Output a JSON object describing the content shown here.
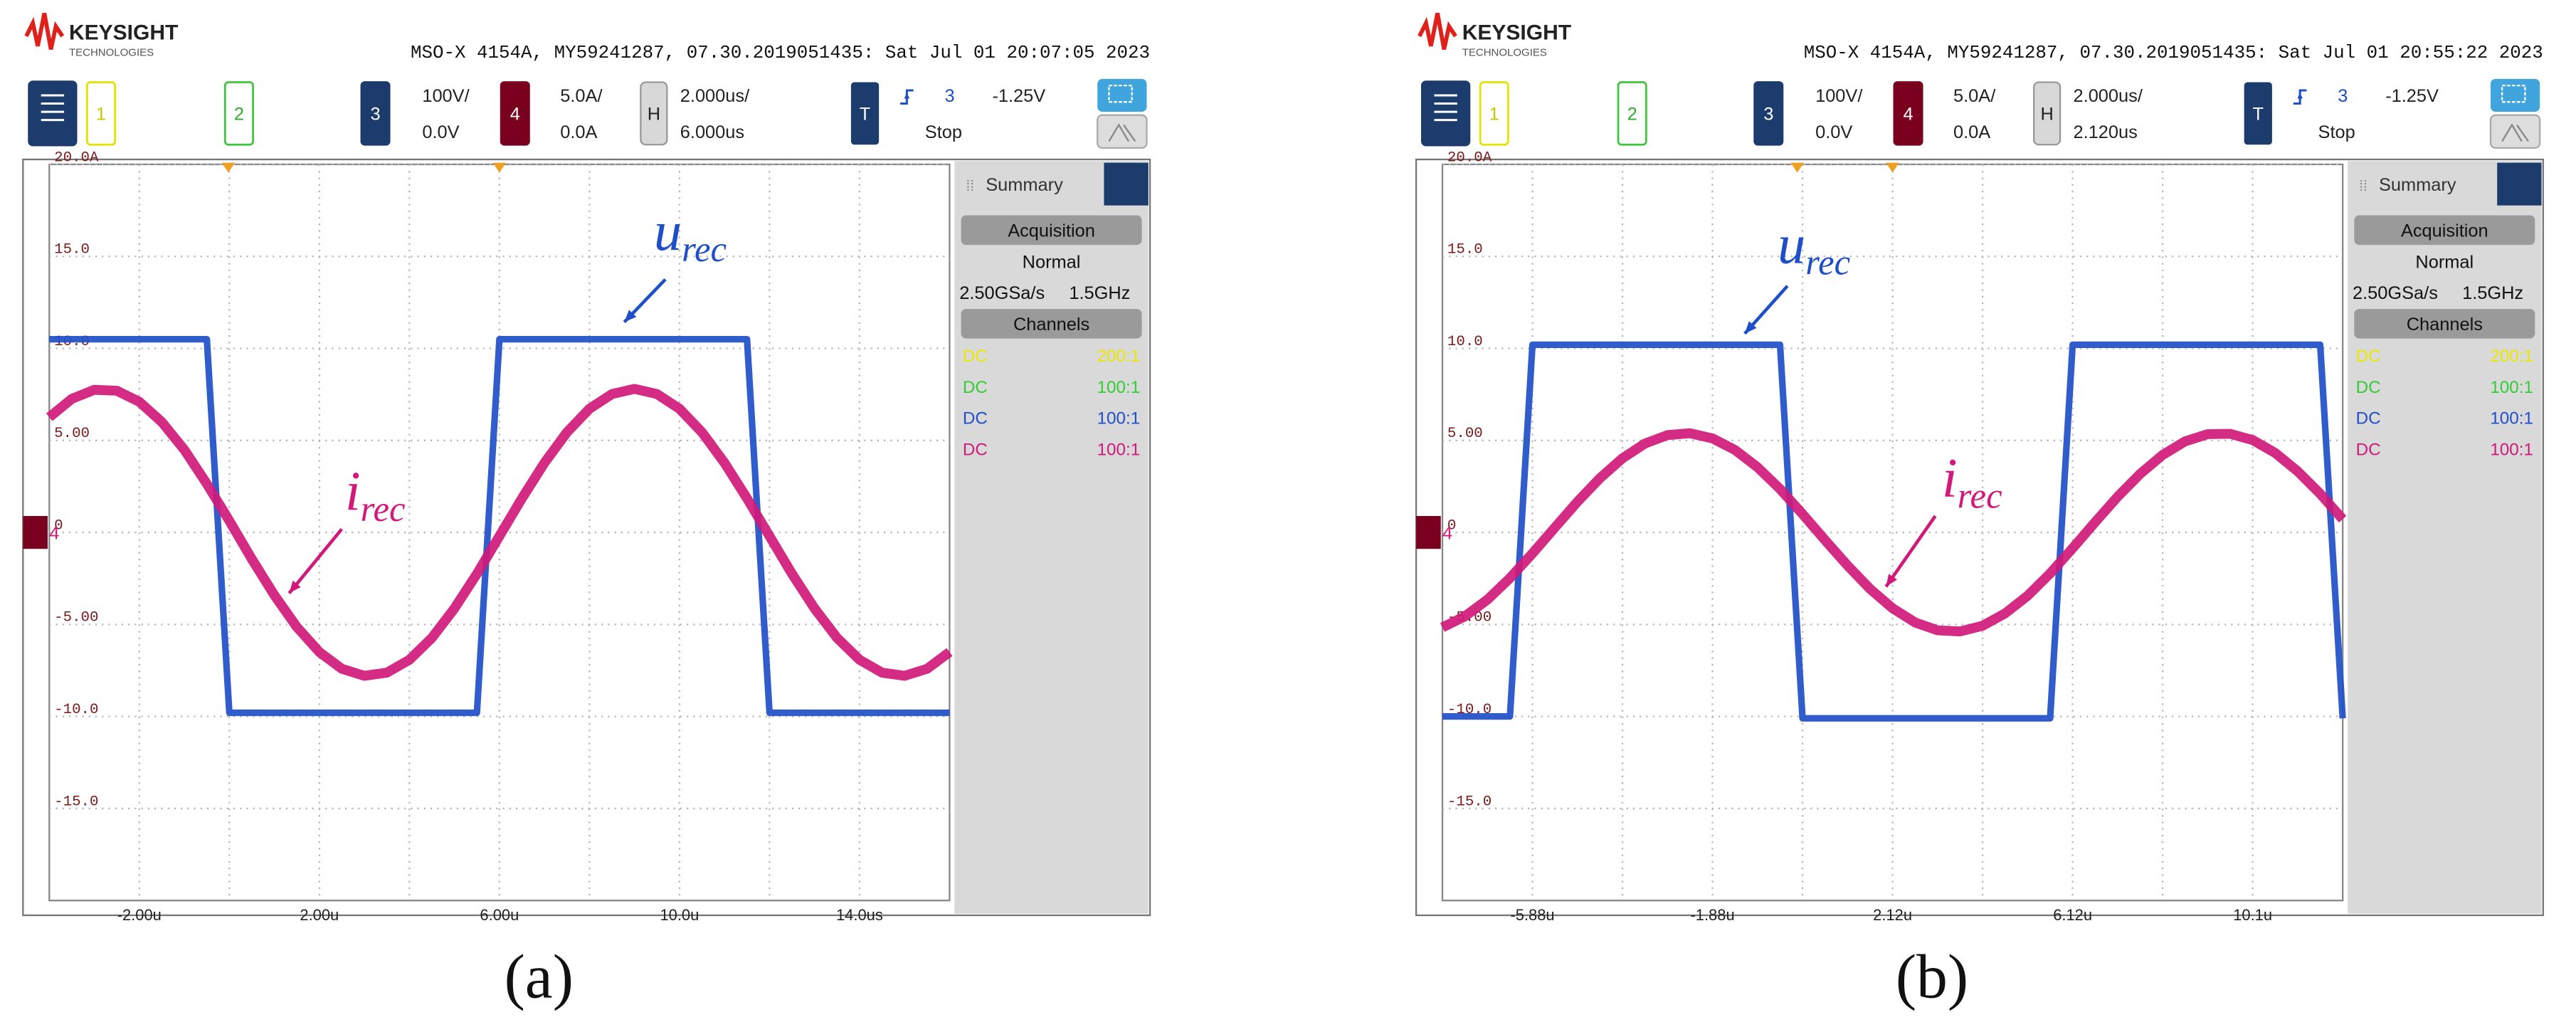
{
  "chart_data": [
    {
      "type": "line",
      "brand": "KEYSIGHT",
      "brand_sub": "TECHNOLOGIES",
      "title": "MSO-X 4154A, MY59241287, 07.30.2019051435: Sat Jul 01 20:07:05 2023",
      "channels": [
        "1",
        "2",
        "3",
        "4"
      ],
      "ch3_scale": "100V/",
      "ch3_offset": "0.0V",
      "ch4_scale": "5.0A/",
      "ch4_offset": "0.0A",
      "h_label": "H",
      "timebase": "2.000us/",
      "delay": "6.000us",
      "t_label": "T",
      "trigger_source": "3",
      "trigger_level": "-1.25V",
      "run_state": "Stop",
      "panel_title": "Summary",
      "acquisition": "Acquisition",
      "acq_mode": "Normal",
      "sample_rate": "2.50GSa/s",
      "bandwidth": "1.5GHz",
      "channels_title": "Channels",
      "channel_rows": [
        [
          "DC",
          "200:1"
        ],
        [
          "DC",
          "100:1"
        ],
        [
          "DC",
          "100:1"
        ],
        [
          "DC",
          "100:1"
        ]
      ],
      "ground_marker": "4",
      "annotations": [
        {
          "text": "u",
          "sub": "rec"
        },
        {
          "text": "i",
          "sub": "rec"
        }
      ],
      "caption": "(a)",
      "xlim": [
        -4,
        16
      ],
      "ylim": [
        -20,
        20
      ],
      "xticks": [
        {
          "value": -2,
          "label": "-2.00u"
        },
        {
          "value": 2,
          "label": "2.00u"
        },
        {
          "value": 6,
          "label": "6.00u"
        },
        {
          "value": 10,
          "label": "10.0u"
        },
        {
          "value": 14,
          "label": "14.0us"
        }
      ],
      "yticks": [
        {
          "value": 20,
          "label": "20.0A"
        },
        {
          "value": 15,
          "label": "15.0"
        },
        {
          "value": 10,
          "label": "10.0"
        },
        {
          "value": 5,
          "label": "5.00"
        },
        0,
        {
          "value": -5,
          "label": "-5.00"
        },
        {
          "value": -10,
          "label": "-10.0"
        },
        {
          "value": -15,
          "label": "-15.0"
        }
      ],
      "grid": true,
      "x": [
        -4,
        -3.5,
        -3,
        -2.5,
        -2,
        -1.5,
        -1,
        -0.5,
        0,
        0.5,
        1,
        1.5,
        2,
        2.5,
        3,
        3.5,
        4,
        4.5,
        5,
        5.5,
        6,
        6.5,
        7,
        7.5,
        8,
        8.5,
        9,
        9.5,
        10,
        10.5,
        11,
        11.5,
        12,
        12.5,
        13,
        13.5,
        14,
        14.5,
        15,
        15.5,
        16
      ],
      "series": [
        {
          "color": "#1f4fc8",
          "values": [
            10.5,
            10.5,
            10.5,
            10.5,
            10.5,
            10.5,
            10.5,
            10.5,
            -9.8,
            -9.8,
            -9.8,
            -9.8,
            -9.8,
            -9.8,
            -9.8,
            -9.8,
            -9.8,
            -9.8,
            -9.8,
            -9.8,
            10.5,
            10.5,
            10.5,
            10.5,
            10.5,
            10.5,
            10.5,
            10.5,
            10.5,
            10.5,
            10.5,
            10.5,
            -9.8,
            -9.8,
            -9.8,
            -9.8,
            -9.8,
            -9.8,
            -9.8,
            -9.8,
            -9.8
          ]
        },
        {
          "color": "#d0197a",
          "values": [
            6.26,
            7.26,
            7.75,
            7.7,
            7.1,
            6.0,
            4.49,
            2.64,
            0.63,
            -1.45,
            -3.41,
            -5.14,
            -6.5,
            -7.41,
            -7.79,
            -7.62,
            -6.92,
            -5.73,
            -4.13,
            -2.25,
            -0.2,
            1.85,
            3.78,
            5.44,
            6.72,
            7.52,
            7.8,
            7.52,
            6.72,
            5.44,
            3.78,
            1.85,
            -0.2,
            -2.25,
            -4.13,
            -5.73,
            -6.92,
            -7.62,
            -7.79,
            -7.41,
            -6.5
          ]
        }
      ]
    },
    {
      "type": "line",
      "brand": "KEYSIGHT",
      "brand_sub": "TECHNOLOGIES",
      "title": "MSO-X 4154A, MY59241287, 07.30.2019051435: Sat Jul 01 20:55:22 2023",
      "channels": [
        "1",
        "2",
        "3",
        "4"
      ],
      "ch3_scale": "100V/",
      "ch3_offset": "0.0V",
      "ch4_scale": "5.0A/",
      "ch4_offset": "0.0A",
      "h_label": "H",
      "timebase": "2.000us/",
      "delay": "2.120us",
      "t_label": "T",
      "trigger_source": "3",
      "trigger_level": "-1.25V",
      "run_state": "Stop",
      "panel_title": "Summary",
      "acquisition": "Acquisition",
      "acq_mode": "Normal",
      "sample_rate": "2.50GSa/s",
      "bandwidth": "1.5GHz",
      "channels_title": "Channels",
      "channel_rows": [
        [
          "DC",
          "200:1"
        ],
        [
          "DC",
          "100:1"
        ],
        [
          "DC",
          "100:1"
        ],
        [
          "DC",
          "100:1"
        ]
      ],
      "ground_marker": "4",
      "annotations": [
        {
          "text": "u",
          "sub": "rec"
        },
        {
          "text": "i",
          "sub": "rec"
        }
      ],
      "caption": "(b)",
      "xlim": [
        -7.88,
        12.12
      ],
      "ylim": [
        -20,
        20
      ],
      "xticks": [
        {
          "value": -5.88,
          "label": "-5.88u"
        },
        {
          "value": -1.88,
          "label": "-1.88u"
        },
        {
          "value": 2.12,
          "label": "2.12u"
        },
        {
          "value": 6.12,
          "label": "6.12u"
        },
        {
          "value": 10.12,
          "label": "10.1u"
        }
      ],
      "yticks": [
        {
          "value": 20,
          "label": "20.0A"
        },
        {
          "value": 15,
          "label": "15.0"
        },
        {
          "value": 10,
          "label": "10.0"
        },
        {
          "value": 5,
          "label": "5.00"
        },
        0,
        {
          "value": -5,
          "label": "-5.00"
        },
        {
          "value": -10,
          "label": "-10.0"
        },
        {
          "value": -15,
          "label": "-15.0"
        }
      ],
      "grid": true,
      "x": [
        -7.88,
        -7.38,
        -6.88,
        -6.38,
        -5.88,
        -5.38,
        -4.88,
        -4.38,
        -3.88,
        -3.38,
        -2.88,
        -2.38,
        -1.88,
        -1.38,
        -0.88,
        -0.38,
        0.12,
        0.62,
        1.12,
        1.62,
        2.12,
        2.62,
        3.12,
        3.62,
        4.12,
        4.62,
        5.12,
        5.62,
        6.12,
        6.62,
        7.12,
        7.62,
        8.12,
        8.62,
        9.12,
        9.62,
        10.12,
        10.62,
        11.12,
        11.62,
        12.12
      ],
      "series": [
        {
          "color": "#1f4fc8",
          "values": [
            -10.0,
            -10.0,
            -10.0,
            -10.0,
            10.2,
            10.2,
            10.2,
            10.2,
            10.2,
            10.2,
            10.2,
            10.2,
            10.2,
            10.2,
            10.2,
            10.2,
            -10.1,
            -10.1,
            -10.1,
            -10.1,
            -10.1,
            -10.1,
            -10.1,
            -10.1,
            -10.1,
            -10.1,
            -10.1,
            -10.1,
            10.2,
            10.2,
            10.2,
            10.2,
            10.2,
            10.2,
            10.2,
            10.2,
            10.2,
            10.2,
            10.2,
            10.2,
            -10.1
          ]
        },
        {
          "color": "#d0197a",
          "values": [
            -5.16,
            -4.56,
            -3.65,
            -2.48,
            -1.14,
            0.27,
            1.67,
            2.95,
            4.03,
            4.83,
            5.29,
            5.39,
            5.11,
            4.48,
            3.54,
            2.36,
            1.0,
            -0.42,
            -1.8,
            -3.07,
            -4.12,
            -4.89,
            -5.32,
            -5.38,
            -5.07,
            -4.4,
            -3.44,
            -2.23,
            -0.86,
            0.56,
            1.94,
            3.18,
            4.21,
            4.95,
            5.34,
            5.36,
            5.02,
            4.32,
            3.32,
            2.1,
            0.72
          ]
        }
      ]
    }
  ]
}
